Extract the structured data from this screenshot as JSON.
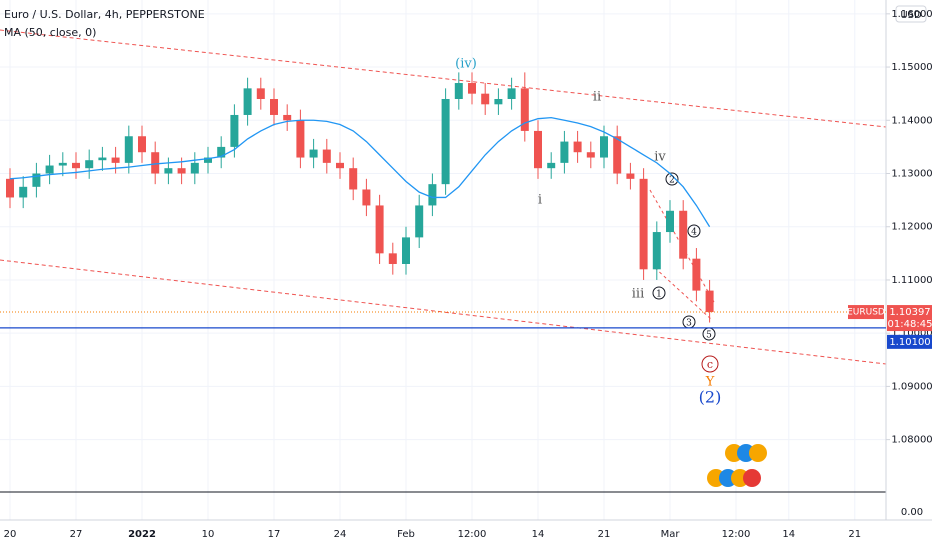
{
  "chart_data": {
    "type": "candlestick",
    "title": "Euro / U.S. Dollar, 4h, PEPPERSTONE",
    "currency": "USD",
    "symbol": "EURUSD",
    "countdown": "01:48:45",
    "last_price": {
      "value": 1.10397,
      "label": "1.10397"
    },
    "level": {
      "value": 1.101,
      "label": "1.10100"
    },
    "axis_break_label": "0.00",
    "up_color": "#26a69a",
    "down_color": "#ef5350",
    "categories": [
      "20",
      null,
      null,
      null,
      null,
      "27",
      null,
      null,
      null,
      null,
      "2022",
      null,
      null,
      null,
      null,
      "10",
      null,
      null,
      null,
      null,
      "17",
      null,
      null,
      null,
      null,
      "24",
      null,
      null,
      null,
      null,
      "Feb",
      null,
      null,
      null,
      null,
      "12:00",
      null,
      null,
      null,
      null,
      "14",
      null,
      null,
      null,
      null,
      "21",
      null,
      null,
      null,
      null,
      "Mar",
      null,
      null,
      null,
      null,
      "12:00",
      null,
      null,
      null,
      "14",
      null,
      null,
      null,
      null,
      "21",
      null
    ],
    "open": [
      1.129,
      1.1255,
      1.1275,
      1.13,
      1.1315,
      1.132,
      1.131,
      1.1325,
      1.133,
      1.132,
      1.137,
      1.134,
      1.13,
      1.131,
      1.13,
      1.132,
      1.133,
      1.135,
      1.141,
      1.146,
      1.144,
      1.141,
      1.14,
      1.133,
      1.1345,
      1.132,
      1.131,
      1.127,
      1.124,
      1.115,
      1.113,
      1.118,
      1.124,
      1.128,
      1.144,
      1.147,
      1.145,
      1.143,
      1.144,
      1.146,
      1.138,
      1.131,
      1.132,
      1.136,
      1.134,
      1.133,
      1.137,
      1.13,
      1.129,
      1.112,
      1.119,
      1.123,
      1.114,
      1.108,
      null,
      null,
      null,
      null,
      null,
      null,
      null,
      null,
      null,
      null,
      null,
      null
    ],
    "high": [
      1.131,
      1.1295,
      1.132,
      1.1335,
      1.134,
      1.134,
      1.1345,
      1.135,
      1.135,
      1.139,
      1.139,
      1.136,
      1.133,
      1.133,
      1.134,
      1.135,
      1.137,
      1.143,
      1.148,
      1.148,
      1.146,
      1.143,
      1.142,
      1.1365,
      1.1365,
      1.134,
      1.133,
      1.129,
      1.126,
      1.117,
      1.12,
      1.126,
      1.13,
      1.146,
      1.149,
      1.149,
      1.147,
      1.146,
      1.148,
      1.149,
      1.14,
      1.134,
      1.138,
      1.138,
      1.136,
      1.139,
      1.139,
      1.132,
      1.131,
      1.121,
      1.125,
      1.125,
      1.116,
      1.11,
      null,
      null,
      null,
      null,
      null,
      null,
      null,
      null,
      null,
      null,
      null,
      null
    ],
    "low": [
      1.1235,
      1.1235,
      1.1255,
      1.128,
      1.1295,
      1.129,
      1.129,
      1.1305,
      1.13,
      1.13,
      1.132,
      1.128,
      1.128,
      1.128,
      1.128,
      1.13,
      1.131,
      1.133,
      1.139,
      1.142,
      1.139,
      1.138,
      1.131,
      1.131,
      1.13,
      1.129,
      1.125,
      1.122,
      1.113,
      1.111,
      1.111,
      1.116,
      1.122,
      1.126,
      1.142,
      1.143,
      1.141,
      1.141,
      1.142,
      1.136,
      1.129,
      1.129,
      1.13,
      1.132,
      1.131,
      1.131,
      1.128,
      1.127,
      1.11,
      1.11,
      1.117,
      1.112,
      1.106,
      1.102,
      null,
      null,
      null,
      null,
      null,
      null,
      null,
      null,
      null,
      null,
      null,
      null
    ],
    "close": [
      1.1255,
      1.1275,
      1.13,
      1.1315,
      1.132,
      1.131,
      1.1325,
      1.133,
      1.132,
      1.137,
      1.134,
      1.13,
      1.131,
      1.13,
      1.132,
      1.133,
      1.135,
      1.141,
      1.146,
      1.144,
      1.141,
      1.14,
      1.133,
      1.1345,
      1.132,
      1.131,
      1.127,
      1.124,
      1.115,
      1.113,
      1.118,
      1.124,
      1.128,
      1.144,
      1.147,
      1.145,
      1.143,
      1.144,
      1.146,
      1.138,
      1.131,
      1.132,
      1.136,
      1.134,
      1.133,
      1.137,
      1.13,
      1.129,
      1.112,
      1.119,
      1.123,
      1.114,
      1.108,
      1.10397,
      null,
      null,
      null,
      null,
      null,
      null,
      null,
      null,
      null,
      null,
      null,
      null
    ],
    "series": [
      {
        "name": "MA (50, close, 0)",
        "color": "#2196f3",
        "values": [
          1.129,
          1.1292,
          1.1295,
          1.1298,
          1.13,
          1.1302,
          1.1305,
          1.1308,
          1.131,
          1.1312,
          1.1315,
          1.1318,
          1.132,
          1.1322,
          1.1325,
          1.1328,
          1.1332,
          1.1345,
          1.1365,
          1.138,
          1.1392,
          1.1398,
          1.14,
          1.14,
          1.1398,
          1.1392,
          1.138,
          1.136,
          1.1335,
          1.131,
          1.1285,
          1.1265,
          1.1255,
          1.1255,
          1.1275,
          1.1305,
          1.1335,
          1.136,
          1.138,
          1.1395,
          1.1403,
          1.1405,
          1.14,
          1.1395,
          1.1388,
          1.1378,
          1.1365,
          1.135,
          1.1335,
          1.132,
          1.13,
          1.1275,
          1.124,
          1.12,
          null,
          null,
          null,
          null,
          null,
          null,
          null,
          null,
          null,
          null,
          null,
          null
        ]
      }
    ],
    "ylim": [
      1.0649,
      1.1626
    ],
    "yticks": [
      {
        "value": 1.08,
        "label": "1.08000"
      },
      {
        "value": 1.09,
        "label": "1.09000"
      },
      {
        "value": 1.1,
        "label": "1.10000"
      },
      {
        "value": 1.11,
        "label": "1.11000"
      },
      {
        "value": 1.12,
        "label": "1.12000"
      },
      {
        "value": 1.13,
        "label": "1.13000"
      },
      {
        "value": 1.14,
        "label": "1.14000"
      },
      {
        "value": 1.15,
        "label": "1.15000"
      },
      {
        "value": 1.16,
        "label": "1.16000"
      }
    ],
    "annotations": [
      "(iv)",
      "ii",
      "iv",
      "i",
      "iii",
      "1",
      "2",
      "3",
      "4",
      "5",
      "c",
      "Y",
      "(2)"
    ]
  }
}
